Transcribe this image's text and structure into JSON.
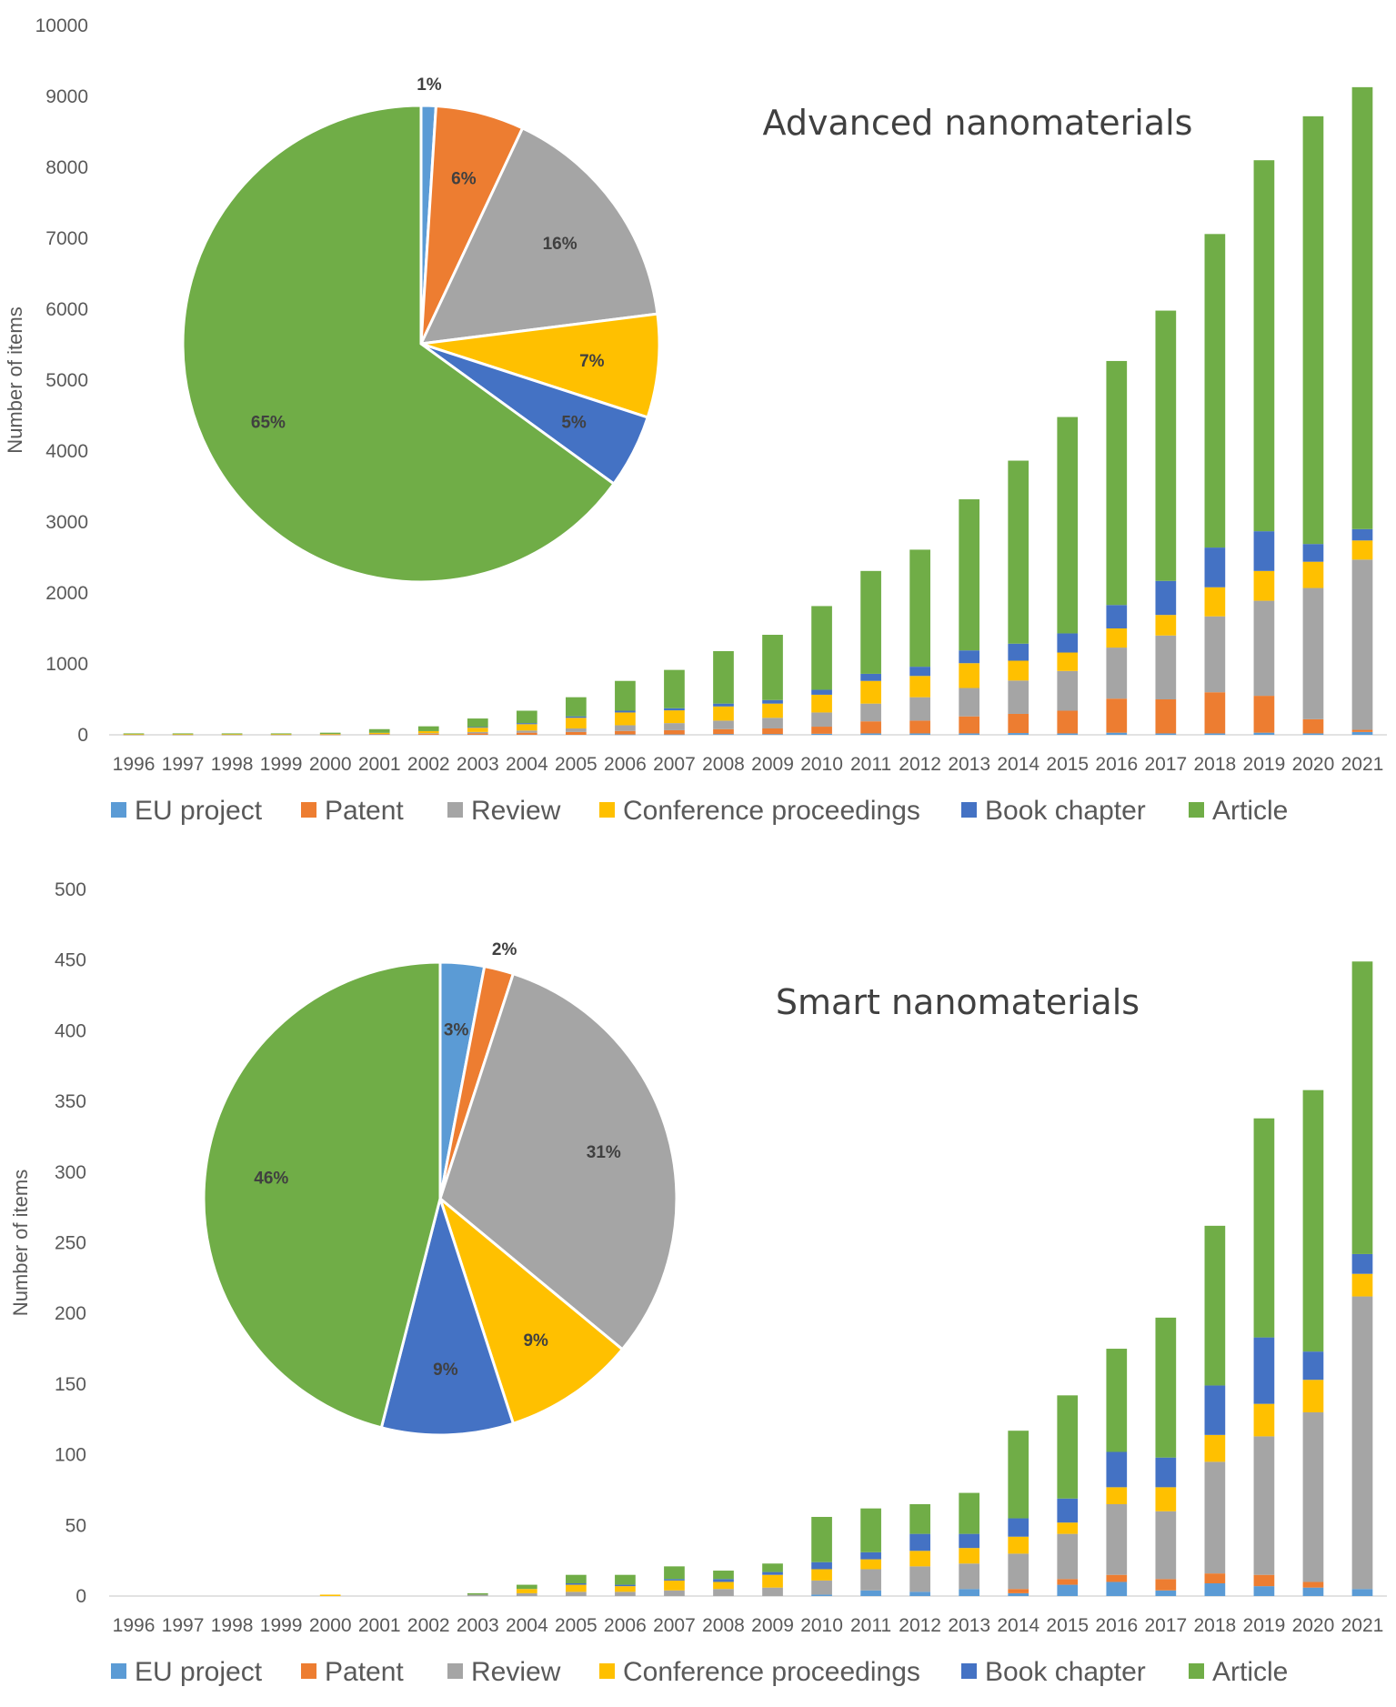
{
  "colors": {
    "EU project": "#5B9BD5",
    "Patent": "#ED7D31",
    "Review": "#A5A5A5",
    "Conference proceedings": "#FFC000",
    "Book chapter": "#4472C4",
    "Article": "#70AD47"
  },
  "chart_data": [
    {
      "type": "bar",
      "stacked": true,
      "title": "Advanced nanomaterials",
      "ylabel": "Number of items",
      "ylim": [
        0,
        10000
      ],
      "yticks": [
        "0",
        "1000",
        "2000",
        "3000",
        "4000",
        "5000",
        "6000",
        "7000",
        "8000",
        "9000",
        "10000"
      ],
      "ytick_values": [
        0,
        1000,
        2000,
        3000,
        4000,
        5000,
        6000,
        7000,
        8000,
        9000,
        10000
      ],
      "legend_position": "bottom",
      "categories": [
        "1996",
        "1997",
        "1998",
        "1999",
        "2000",
        "2001",
        "2002",
        "2003",
        "2004",
        "2005",
        "2006",
        "2007",
        "2008",
        "2009",
        "2010",
        "2011",
        "2012",
        "2013",
        "2014",
        "2015",
        "2016",
        "2017",
        "2018",
        "2019",
        "2020",
        "2021"
      ],
      "series": [
        {
          "name": "EU project",
          "values": [
            0,
            0,
            0,
            0,
            0,
            0,
            0,
            0,
            0,
            0,
            5,
            5,
            10,
            10,
            15,
            20,
            20,
            20,
            25,
            20,
            30,
            20,
            20,
            30,
            20,
            40
          ]
        },
        {
          "name": "Patent",
          "values": [
            2,
            2,
            2,
            2,
            3,
            8,
            12,
            20,
            30,
            40,
            50,
            60,
            70,
            80,
            100,
            170,
            180,
            240,
            270,
            320,
            480,
            480,
            580,
            520,
            200,
            30
          ]
        },
        {
          "name": "Review",
          "values": [
            1,
            1,
            1,
            1,
            2,
            5,
            10,
            20,
            30,
            50,
            80,
            100,
            120,
            150,
            200,
            250,
            330,
            400,
            470,
            560,
            720,
            900,
            1070,
            1340,
            1850,
            2400
          ]
        },
        {
          "name": "Conference proceedings",
          "values": [
            5,
            5,
            5,
            5,
            8,
            15,
            30,
            60,
            90,
            150,
            180,
            180,
            200,
            200,
            250,
            320,
            300,
            350,
            280,
            260,
            270,
            290,
            410,
            420,
            370,
            270
          ]
        },
        {
          "name": "Book chapter",
          "values": [
            0,
            0,
            0,
            0,
            0,
            0,
            0,
            10,
            15,
            20,
            25,
            30,
            40,
            50,
            70,
            100,
            130,
            180,
            240,
            270,
            330,
            480,
            560,
            560,
            250,
            160
          ]
        },
        {
          "name": "Article",
          "values": [
            12,
            12,
            12,
            12,
            17,
            52,
            68,
            120,
            175,
            270,
            420,
            540,
            740,
            920,
            1180,
            1450,
            1650,
            2130,
            2580,
            3050,
            3440,
            3810,
            4420,
            5230,
            6030,
            6230
          ]
        }
      ],
      "pie": {
        "type": "pie",
        "slices": [
          {
            "name": "EU project",
            "percent": 1,
            "label": "1%"
          },
          {
            "name": "Patent",
            "percent": 6,
            "label": "6%"
          },
          {
            "name": "Review",
            "percent": 16,
            "label": "16%"
          },
          {
            "name": "Conference proceedings",
            "percent": 7,
            "label": "7%"
          },
          {
            "name": "Book chapter",
            "percent": 5,
            "label": "5%"
          },
          {
            "name": "Article",
            "percent": 65,
            "label": "65%"
          }
        ]
      }
    },
    {
      "type": "bar",
      "stacked": true,
      "title": "Smart nanomaterials",
      "ylabel": "Number of items",
      "ylim": [
        0,
        500
      ],
      "yticks": [
        "0",
        "50",
        "100",
        "150",
        "200",
        "250",
        "300",
        "350",
        "400",
        "450",
        "500"
      ],
      "ytick_values": [
        0,
        50,
        100,
        150,
        200,
        250,
        300,
        350,
        400,
        450,
        500
      ],
      "legend_position": "bottom",
      "categories": [
        "1996",
        "1997",
        "1998",
        "1999",
        "2000",
        "2001",
        "2002",
        "2003",
        "2004",
        "2005",
        "2006",
        "2007",
        "2008",
        "2009",
        "2010",
        "2011",
        "2012",
        "2013",
        "2014",
        "2015",
        "2016",
        "2017",
        "2018",
        "2019",
        "2020",
        "2021"
      ],
      "series": [
        {
          "name": "EU project",
          "values": [
            0,
            0,
            0,
            0,
            0,
            0,
            0,
            0,
            0,
            0,
            0,
            0,
            0,
            0,
            1,
            4,
            3,
            5,
            2,
            8,
            10,
            4,
            9,
            7,
            6,
            5
          ]
        },
        {
          "name": "Patent",
          "values": [
            0,
            0,
            0,
            0,
            0,
            0,
            0,
            0,
            0,
            0,
            0,
            0,
            0,
            0,
            0,
            0,
            0,
            0,
            3,
            4,
            5,
            8,
            7,
            8,
            4,
            0
          ]
        },
        {
          "name": "Review",
          "values": [
            0,
            0,
            0,
            0,
            0,
            0,
            0,
            1,
            2,
            3,
            3,
            4,
            5,
            6,
            10,
            15,
            18,
            18,
            25,
            32,
            50,
            48,
            79,
            98,
            120,
            207
          ]
        },
        {
          "name": "Conference proceedings",
          "values": [
            0,
            0,
            0,
            0,
            1,
            0,
            0,
            0,
            3,
            5,
            4,
            7,
            5,
            9,
            8,
            7,
            11,
            11,
            12,
            8,
            12,
            17,
            19,
            23,
            23,
            16
          ]
        },
        {
          "name": "Book chapter",
          "values": [
            0,
            0,
            0,
            0,
            0,
            0,
            0,
            0,
            0,
            1,
            1,
            1,
            2,
            2,
            5,
            5,
            12,
            10,
            13,
            17,
            25,
            21,
            35,
            47,
            20,
            14
          ]
        },
        {
          "name": "Article",
          "values": [
            0,
            0,
            0,
            0,
            0,
            0,
            0,
            1,
            3,
            6,
            7,
            9,
            6,
            6,
            32,
            31,
            21,
            29,
            62,
            73,
            73,
            99,
            113,
            155,
            185,
            207
          ]
        }
      ],
      "pie": {
        "type": "pie",
        "slices": [
          {
            "name": "EU project",
            "percent": 3,
            "label": "3%"
          },
          {
            "name": "Patent",
            "percent": 2,
            "label": "2%"
          },
          {
            "name": "Review",
            "percent": 31,
            "label": "31%"
          },
          {
            "name": "Conference proceedings",
            "percent": 9,
            "label": "9%"
          },
          {
            "name": "Book chapter",
            "percent": 9,
            "label": "9%"
          },
          {
            "name": "Article",
            "percent": 46,
            "label": "46%"
          }
        ]
      }
    }
  ]
}
